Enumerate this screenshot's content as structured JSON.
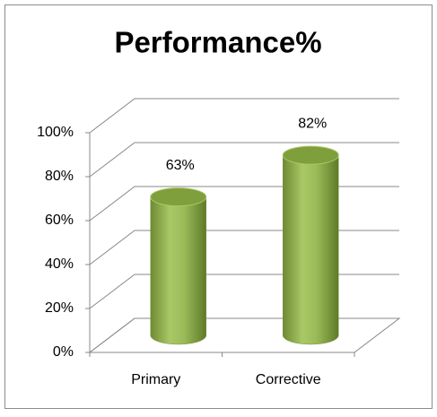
{
  "chart_data": {
    "type": "bar",
    "title": "Performance%",
    "categories": [
      "Primary",
      "Corrective"
    ],
    "values": [
      63,
      82
    ],
    "value_labels": [
      "63%",
      "82%"
    ],
    "color": "#9bbb59",
    "ylim": [
      0,
      100
    ],
    "yticks": [
      {
        "value": 0,
        "label": "0%"
      },
      {
        "value": 20,
        "label": "20%"
      },
      {
        "value": 40,
        "label": "40%"
      },
      {
        "value": 60,
        "label": "60%"
      },
      {
        "value": 80,
        "label": "80%"
      },
      {
        "value": 100,
        "label": "100%"
      }
    ],
    "grid": true
  }
}
